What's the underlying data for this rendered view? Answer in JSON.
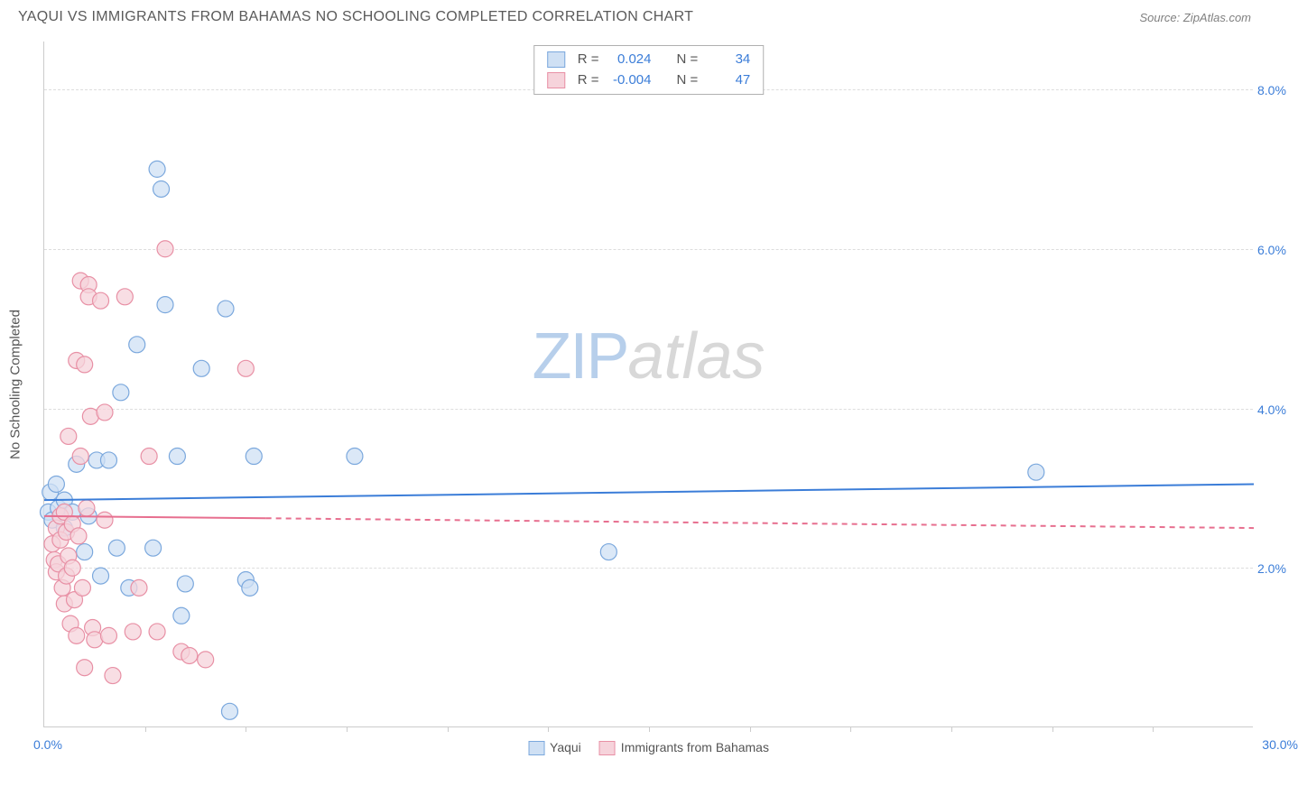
{
  "header": {
    "title": "YAQUI VS IMMIGRANTS FROM BAHAMAS NO SCHOOLING COMPLETED CORRELATION CHART",
    "source": "Source: ZipAtlas.com"
  },
  "watermark": {
    "zip": "ZIP",
    "atlas": "atlas"
  },
  "chart": {
    "type": "scatter",
    "y_axis_label": "No Schooling Completed",
    "xlim": [
      0,
      30
    ],
    "ylim": [
      0,
      8.6
    ],
    "x_start_label": "0.0%",
    "x_end_label": "30.0%",
    "x_tick_positions": [
      2.5,
      5,
      7.5,
      10,
      12.5,
      15,
      17.5,
      20,
      22.5,
      25,
      27.5
    ],
    "y_ticks": [
      {
        "v": 2.0,
        "label": "2.0%"
      },
      {
        "v": 4.0,
        "label": "4.0%"
      },
      {
        "v": 6.0,
        "label": "6.0%"
      },
      {
        "v": 8.0,
        "label": "8.0%"
      }
    ],
    "grid_color": "#dddddd",
    "axis_color": "#cccccc",
    "tick_label_color": "#3b7dd8",
    "background_color": "#ffffff",
    "marker_radius": 9,
    "series": [
      {
        "id": "yaqui",
        "label": "Yaqui",
        "fill": "#cfe0f4",
        "stroke": "#7ba8dd",
        "R": "0.024",
        "N": "34",
        "regression": {
          "x1": 0,
          "y1": 2.85,
          "x2": 30,
          "y2": 3.05,
          "solid_until_x": 30,
          "stroke": "#3b7dd8",
          "width": 2
        },
        "points": [
          {
            "x": 0.1,
            "y": 2.7
          },
          {
            "x": 0.15,
            "y": 2.95
          },
          {
            "x": 0.2,
            "y": 2.6
          },
          {
            "x": 0.3,
            "y": 3.05
          },
          {
            "x": 0.35,
            "y": 2.75
          },
          {
            "x": 0.5,
            "y": 2.85
          },
          {
            "x": 0.5,
            "y": 2.5
          },
          {
            "x": 0.7,
            "y": 2.7
          },
          {
            "x": 0.8,
            "y": 3.3
          },
          {
            "x": 1.0,
            "y": 2.2
          },
          {
            "x": 1.1,
            "y": 2.65
          },
          {
            "x": 1.3,
            "y": 3.35
          },
          {
            "x": 1.4,
            "y": 1.9
          },
          {
            "x": 1.6,
            "y": 3.35
          },
          {
            "x": 1.8,
            "y": 2.25
          },
          {
            "x": 1.9,
            "y": 4.2
          },
          {
            "x": 2.1,
            "y": 1.75
          },
          {
            "x": 2.3,
            "y": 4.8
          },
          {
            "x": 2.7,
            "y": 2.25
          },
          {
            "x": 2.8,
            "y": 7.0
          },
          {
            "x": 2.9,
            "y": 6.75
          },
          {
            "x": 3.0,
            "y": 5.3
          },
          {
            "x": 3.3,
            "y": 3.4
          },
          {
            "x": 3.4,
            "y": 1.4
          },
          {
            "x": 3.5,
            "y": 1.8
          },
          {
            "x": 3.9,
            "y": 4.5
          },
          {
            "x": 4.5,
            "y": 5.25
          },
          {
            "x": 4.6,
            "y": 0.2
          },
          {
            "x": 5.0,
            "y": 1.85
          },
          {
            "x": 5.1,
            "y": 1.75
          },
          {
            "x": 5.2,
            "y": 3.4
          },
          {
            "x": 7.7,
            "y": 3.4
          },
          {
            "x": 14.0,
            "y": 2.2
          },
          {
            "x": 24.6,
            "y": 3.2
          }
        ]
      },
      {
        "id": "bahamas",
        "label": "Immigrants from Bahamas",
        "fill": "#f6d3db",
        "stroke": "#e890a5",
        "R": "-0.004",
        "N": "47",
        "regression": {
          "x1": 0,
          "y1": 2.65,
          "x2": 30,
          "y2": 2.5,
          "solid_until_x": 5.5,
          "stroke": "#e76f8f",
          "width": 2
        },
        "points": [
          {
            "x": 0.2,
            "y": 2.3
          },
          {
            "x": 0.25,
            "y": 2.1
          },
          {
            "x": 0.3,
            "y": 2.5
          },
          {
            "x": 0.3,
            "y": 1.95
          },
          {
            "x": 0.35,
            "y": 2.05
          },
          {
            "x": 0.4,
            "y": 2.65
          },
          {
            "x": 0.4,
            "y": 2.35
          },
          {
            "x": 0.45,
            "y": 1.75
          },
          {
            "x": 0.5,
            "y": 2.7
          },
          {
            "x": 0.5,
            "y": 1.55
          },
          {
            "x": 0.55,
            "y": 1.9
          },
          {
            "x": 0.55,
            "y": 2.45
          },
          {
            "x": 0.6,
            "y": 2.15
          },
          {
            "x": 0.6,
            "y": 3.65
          },
          {
            "x": 0.65,
            "y": 1.3
          },
          {
            "x": 0.7,
            "y": 2.0
          },
          {
            "x": 0.7,
            "y": 2.55
          },
          {
            "x": 0.75,
            "y": 1.6
          },
          {
            "x": 0.8,
            "y": 4.6
          },
          {
            "x": 0.8,
            "y": 1.15
          },
          {
            "x": 0.85,
            "y": 2.4
          },
          {
            "x": 0.9,
            "y": 3.4
          },
          {
            "x": 0.9,
            "y": 5.6
          },
          {
            "x": 0.95,
            "y": 1.75
          },
          {
            "x": 1.0,
            "y": 4.55
          },
          {
            "x": 1.0,
            "y": 0.75
          },
          {
            "x": 1.05,
            "y": 2.75
          },
          {
            "x": 1.1,
            "y": 5.55
          },
          {
            "x": 1.1,
            "y": 5.4
          },
          {
            "x": 1.15,
            "y": 3.9
          },
          {
            "x": 1.2,
            "y": 1.25
          },
          {
            "x": 1.25,
            "y": 1.1
          },
          {
            "x": 1.4,
            "y": 5.35
          },
          {
            "x": 1.5,
            "y": 2.6
          },
          {
            "x": 1.5,
            "y": 3.95
          },
          {
            "x": 1.6,
            "y": 1.15
          },
          {
            "x": 2.0,
            "y": 5.4
          },
          {
            "x": 2.2,
            "y": 1.2
          },
          {
            "x": 2.35,
            "y": 1.75
          },
          {
            "x": 2.6,
            "y": 3.4
          },
          {
            "x": 2.8,
            "y": 1.2
          },
          {
            "x": 3.0,
            "y": 6.0
          },
          {
            "x": 3.4,
            "y": 0.95
          },
          {
            "x": 3.6,
            "y": 0.9
          },
          {
            "x": 4.0,
            "y": 0.85
          },
          {
            "x": 5.0,
            "y": 4.5
          },
          {
            "x": 1.7,
            "y": 0.65
          }
        ]
      }
    ]
  },
  "legend_bottom": [
    {
      "label": "Yaqui",
      "fill": "#cfe0f4",
      "stroke": "#7ba8dd"
    },
    {
      "label": "Immigrants from Bahamas",
      "fill": "#f6d3db",
      "stroke": "#e890a5"
    }
  ],
  "stats_labels": {
    "r": "R =",
    "n": "N ="
  }
}
